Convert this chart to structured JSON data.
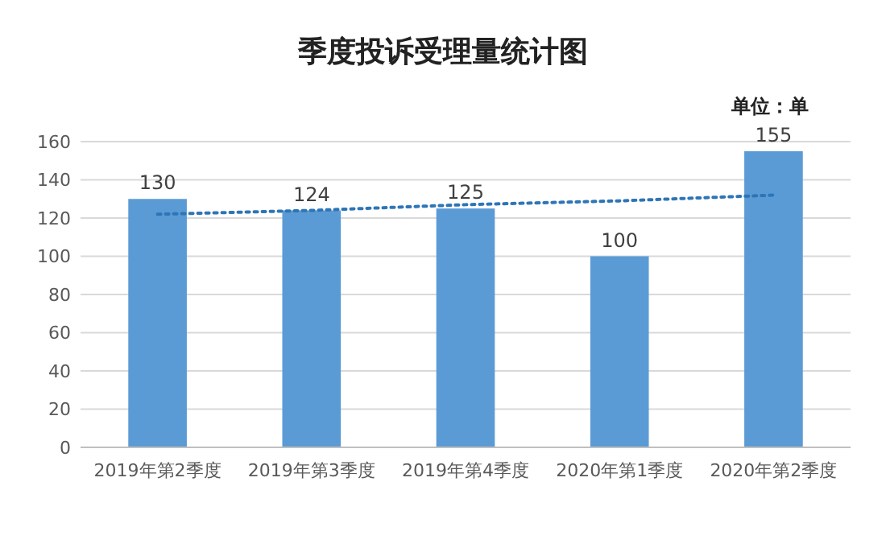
{
  "chart_data": {
    "type": "bar",
    "title": "季度投诉受理量统计图",
    "annotations": [
      "单位：单"
    ],
    "categories": [
      "2019年第2季度",
      "2019年第3季度",
      "2019年第4季度",
      "2020年第1季度",
      "2020年第2季度"
    ],
    "series": [
      {
        "color": "#5b9bd5",
        "values": [
          130,
          124,
          125,
          100,
          155
        ],
        "value_labels": [
          "130",
          "124",
          "125",
          "100",
          "155"
        ]
      },
      {
        "type": "line",
        "color": "#2e75b6",
        "line_style": "dotted",
        "values": [
          122,
          124,
          127,
          129,
          132
        ]
      }
    ],
    "ylim": [
      0,
      160
    ],
    "yticks": [
      0,
      20,
      40,
      60,
      80,
      100,
      120,
      140,
      160
    ],
    "grid": "y"
  }
}
